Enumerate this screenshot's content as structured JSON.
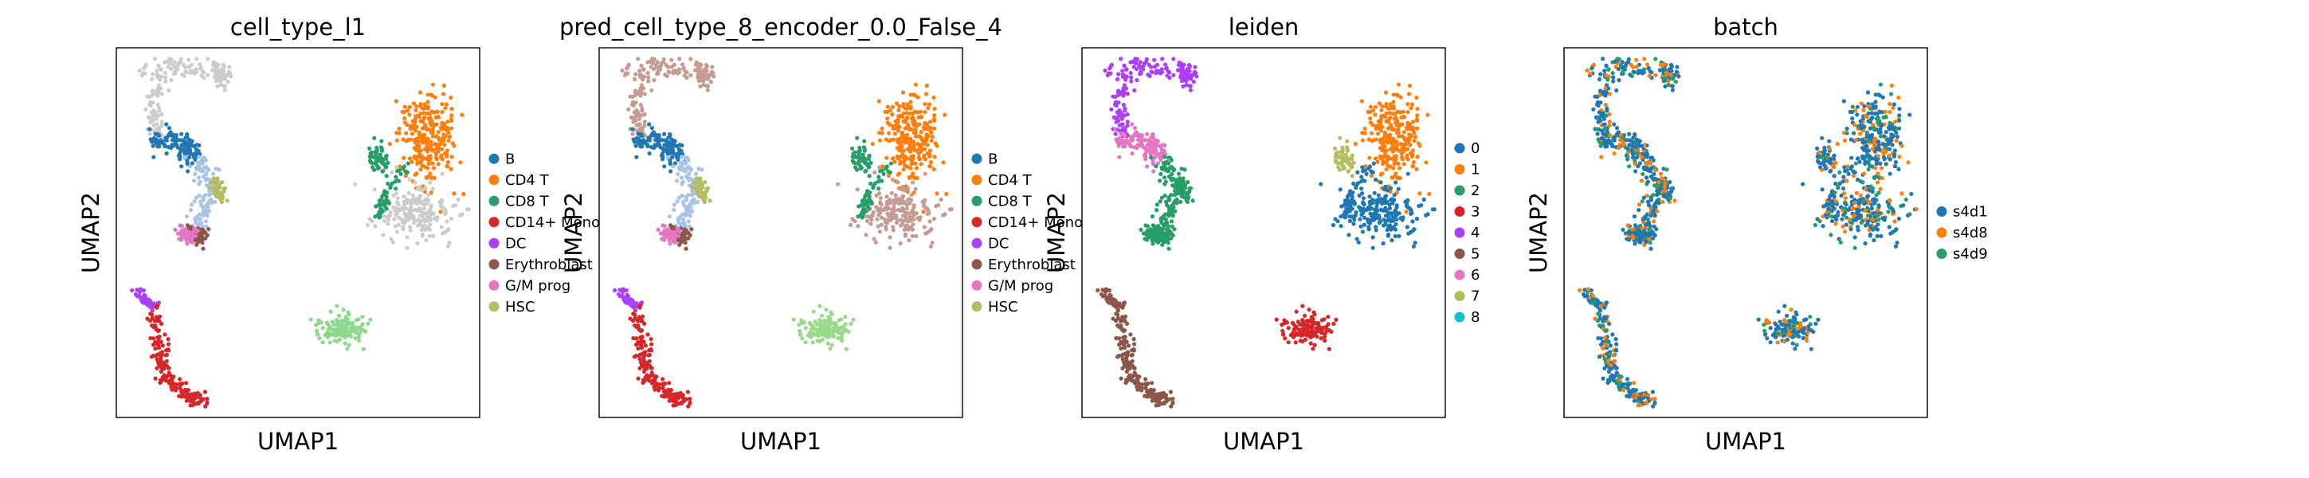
{
  "chart_data": [
    {
      "type": "scatter",
      "title": "cell_type_l1",
      "xlabel": "UMAP1",
      "ylabel": "UMAP2",
      "grid": false,
      "legend_position": "right",
      "legend": [
        {
          "label": "B",
          "color": "#1f77b4"
        },
        {
          "label": "CD4 T",
          "color": "#ff7f0e"
        },
        {
          "label": "CD8 T",
          "color": "#279e68"
        },
        {
          "label": "CD14+ Mono",
          "color": "#d62728"
        },
        {
          "label": "DC",
          "color": "#aa40fc"
        },
        {
          "label": "Erythroblast",
          "color": "#8c564b"
        },
        {
          "label": "G/M prog",
          "color": "#e377c2"
        },
        {
          "label": "HSC",
          "color": "#b5bd61"
        }
      ]
    },
    {
      "type": "scatter",
      "title": "pred_cell_type_8_encoder_0.0_False_4",
      "xlabel": "UMAP1",
      "ylabel": "UMAP2",
      "grid": false,
      "legend_position": "right",
      "legend": [
        {
          "label": "B",
          "color": "#1f77b4"
        },
        {
          "label": "CD4 T",
          "color": "#ff7f0e"
        },
        {
          "label": "CD8 T",
          "color": "#279e68"
        },
        {
          "label": "CD14+ Mono",
          "color": "#d62728"
        },
        {
          "label": "DC",
          "color": "#aa40fc"
        },
        {
          "label": "Erythroblast",
          "color": "#8c564b"
        },
        {
          "label": "G/M prog",
          "color": "#e377c2"
        },
        {
          "label": "HSC",
          "color": "#b5bd61"
        }
      ]
    },
    {
      "type": "scatter",
      "title": "leiden",
      "xlabel": "UMAP1",
      "ylabel": "UMAP2",
      "grid": false,
      "legend_position": "right",
      "legend": [
        {
          "label": "0",
          "color": "#1f77b4"
        },
        {
          "label": "1",
          "color": "#ff7f0e"
        },
        {
          "label": "2",
          "color": "#279e68"
        },
        {
          "label": "3",
          "color": "#d62728"
        },
        {
          "label": "4",
          "color": "#aa40fc"
        },
        {
          "label": "5",
          "color": "#8c564b"
        },
        {
          "label": "6",
          "color": "#e377c2"
        },
        {
          "label": "7",
          "color": "#b5bd61"
        },
        {
          "label": "8",
          "color": "#17becf"
        }
      ]
    },
    {
      "type": "scatter",
      "title": "batch",
      "xlabel": "UMAP1",
      "ylabel": "UMAP2",
      "grid": false,
      "legend_position": "right",
      "legend": [
        {
          "label": "s4d1",
          "color": "#1f77b4"
        },
        {
          "label": "s4d8",
          "color": "#ff7f0e"
        },
        {
          "label": "s4d9",
          "color": "#279e68"
        }
      ]
    }
  ]
}
